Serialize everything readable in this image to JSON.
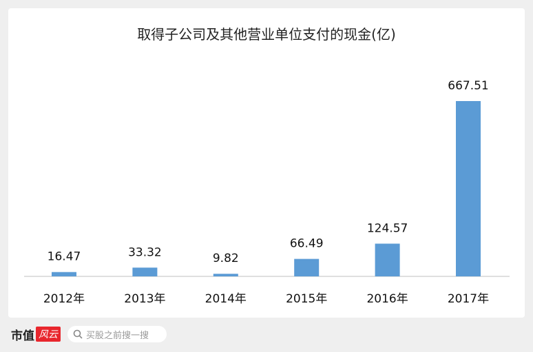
{
  "chart_data": {
    "type": "bar",
    "title": "取得子公司及其他营业单位支付的现金(亿)",
    "categories": [
      "2012年",
      "2013年",
      "2014年",
      "2015年",
      "2016年",
      "2017年"
    ],
    "values": [
      16.47,
      33.32,
      9.82,
      66.49,
      124.57,
      667.51
    ],
    "data_labels": [
      "16.47",
      "33.32",
      "9.82",
      "66.49",
      "124.57",
      "667.51"
    ],
    "ylim": [
      0,
      667.51
    ],
    "grid": false,
    "bar_color": "#5b9bd5"
  },
  "footer": {
    "logo": "市值",
    "logo_badge": "风云",
    "search_placeholder": "买股之前搜一搜"
  }
}
